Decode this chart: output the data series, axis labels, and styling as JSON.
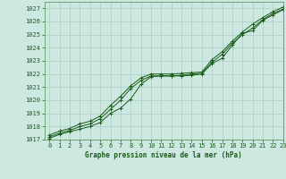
{
  "background_color": "#cce8e0",
  "grid_color": "#aaccc4",
  "line_color": "#1a5c1a",
  "xlabel": "Graphe pression niveau de la mer (hPa)",
  "xlim": [
    -0.5,
    23
  ],
  "ylim": [
    1017,
    1027.5
  ],
  "yticks": [
    1017,
    1018,
    1019,
    1020,
    1021,
    1022,
    1023,
    1024,
    1025,
    1026,
    1027
  ],
  "xticks": [
    0,
    1,
    2,
    3,
    4,
    5,
    6,
    7,
    8,
    9,
    10,
    11,
    12,
    13,
    14,
    15,
    16,
    17,
    18,
    19,
    20,
    21,
    22,
    23
  ],
  "series1_x": [
    0,
    1,
    2,
    3,
    4,
    5,
    6,
    7,
    8,
    9,
    10,
    11,
    12,
    13,
    14,
    15,
    16,
    17,
    18,
    19,
    20,
    21,
    22,
    23
  ],
  "series1_y": [
    1017.1,
    1017.4,
    1017.6,
    1017.8,
    1018.0,
    1018.3,
    1019.0,
    1019.4,
    1020.1,
    1021.2,
    1021.8,
    1021.85,
    1021.85,
    1021.85,
    1021.9,
    1022.0,
    1022.8,
    1023.2,
    1024.2,
    1025.1,
    1025.3,
    1026.1,
    1026.5,
    1026.9
  ],
  "series2_x": [
    0,
    1,
    2,
    3,
    4,
    5,
    6,
    7,
    8,
    9,
    10,
    11,
    12,
    13,
    14,
    15,
    16,
    17,
    18,
    19,
    20,
    21,
    22,
    23
  ],
  "series2_y": [
    1017.2,
    1017.5,
    1017.7,
    1018.0,
    1018.2,
    1018.6,
    1019.3,
    1020.0,
    1020.9,
    1021.5,
    1021.85,
    1021.85,
    1021.85,
    1021.9,
    1022.0,
    1022.05,
    1022.9,
    1023.5,
    1024.35,
    1025.0,
    1025.5,
    1026.15,
    1026.6,
    1026.95
  ],
  "series3_x": [
    0,
    1,
    2,
    3,
    4,
    5,
    6,
    7,
    8,
    9,
    10,
    11,
    12,
    13,
    14,
    15,
    16,
    17,
    18,
    19,
    20,
    21,
    22,
    23
  ],
  "series3_y": [
    1017.35,
    1017.65,
    1017.85,
    1018.2,
    1018.4,
    1018.8,
    1019.6,
    1020.3,
    1021.1,
    1021.7,
    1022.0,
    1022.0,
    1022.0,
    1022.05,
    1022.1,
    1022.15,
    1023.1,
    1023.7,
    1024.5,
    1025.2,
    1025.8,
    1026.3,
    1026.75,
    1027.1
  ]
}
